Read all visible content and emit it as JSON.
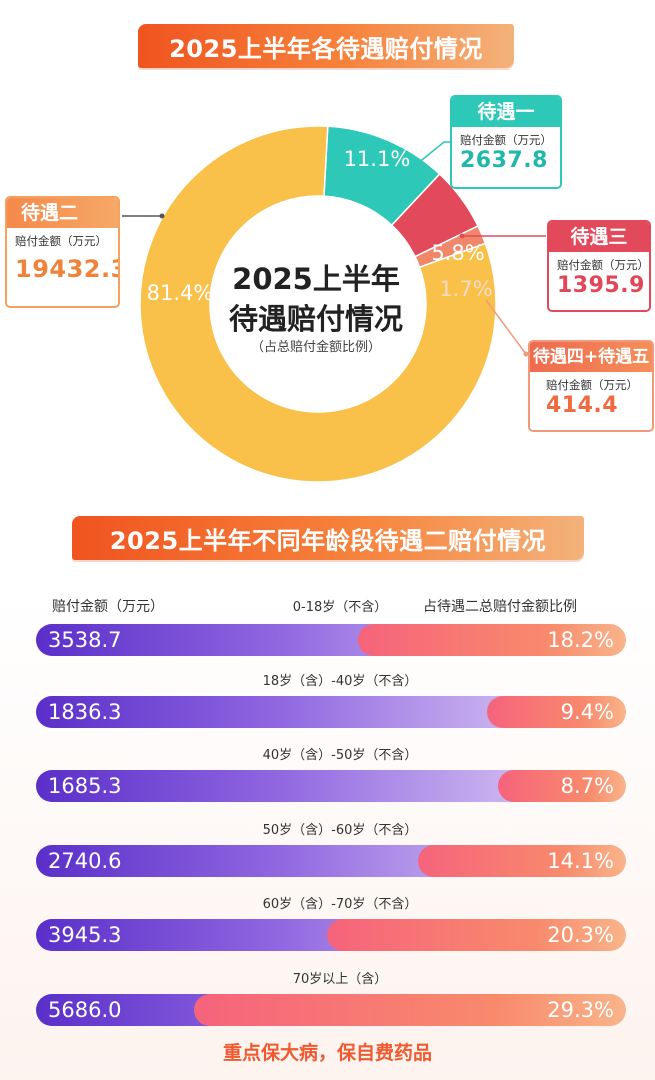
{
  "section1": {
    "title": "2025上半年各待遇赔付情况"
  },
  "center": {
    "line1": "2025上半年",
    "line2": "待遇赔付情况",
    "note": "（占总赔付金额比例）"
  },
  "amount_label": "赔付金额（万元）",
  "colors": {
    "t1": "#2ec8b8",
    "t2": "#f9c04a",
    "t3": "#e24a5c",
    "t45": "#f0876a"
  },
  "cards": [
    {
      "name": "待遇一",
      "amount": "2637.8"
    },
    {
      "name": "待遇二",
      "amount": "19432.3"
    },
    {
      "name": "待遇三",
      "amount": "1395.9"
    },
    {
      "name": "待遇四+待遇五",
      "amount": "414.4"
    }
  ],
  "chart_data": [
    {
      "type": "pie",
      "categories": [
        "待遇一",
        "待遇二",
        "待遇三",
        "待遇四+待遇五"
      ],
      "values": [
        11.1,
        81.4,
        5.8,
        1.7
      ],
      "labels": [
        "11.1%",
        "81.4%",
        "5.8%",
        "1.7%"
      ],
      "amounts": [
        "2637.8",
        "19432.3",
        "1395.9",
        "414.4"
      ]
    },
    {
      "type": "bar",
      "title": "2025上半年不同年龄段待遇二赔付情况",
      "left_header": "赔付金额（万元）",
      "right_header": "占待遇二总赔付金额比例",
      "categories": [
        "0-18岁（不含）",
        "18岁（含）-40岁（不含）",
        "40岁（含）-50岁（不含）",
        "50岁（含）-60岁（不含）",
        "60岁（含）-70岁（不含）",
        "70岁以上（含）"
      ],
      "values": [
        3538.7,
        1836.3,
        1685.3,
        2740.6,
        3945.3,
        5686.0
      ],
      "value_labels": [
        "3538.7",
        "1836.3",
        "1685.3",
        "2740.6",
        "3945.3",
        "5686.0"
      ],
      "percent": [
        18.2,
        9.4,
        8.7,
        14.1,
        20.3,
        29.3
      ],
      "percent_labels": [
        "18.2%",
        "9.4%",
        "8.7%",
        "14.1%",
        "20.3%",
        "29.3%"
      ]
    }
  ],
  "slogan": "重点保大病，保自费药品"
}
